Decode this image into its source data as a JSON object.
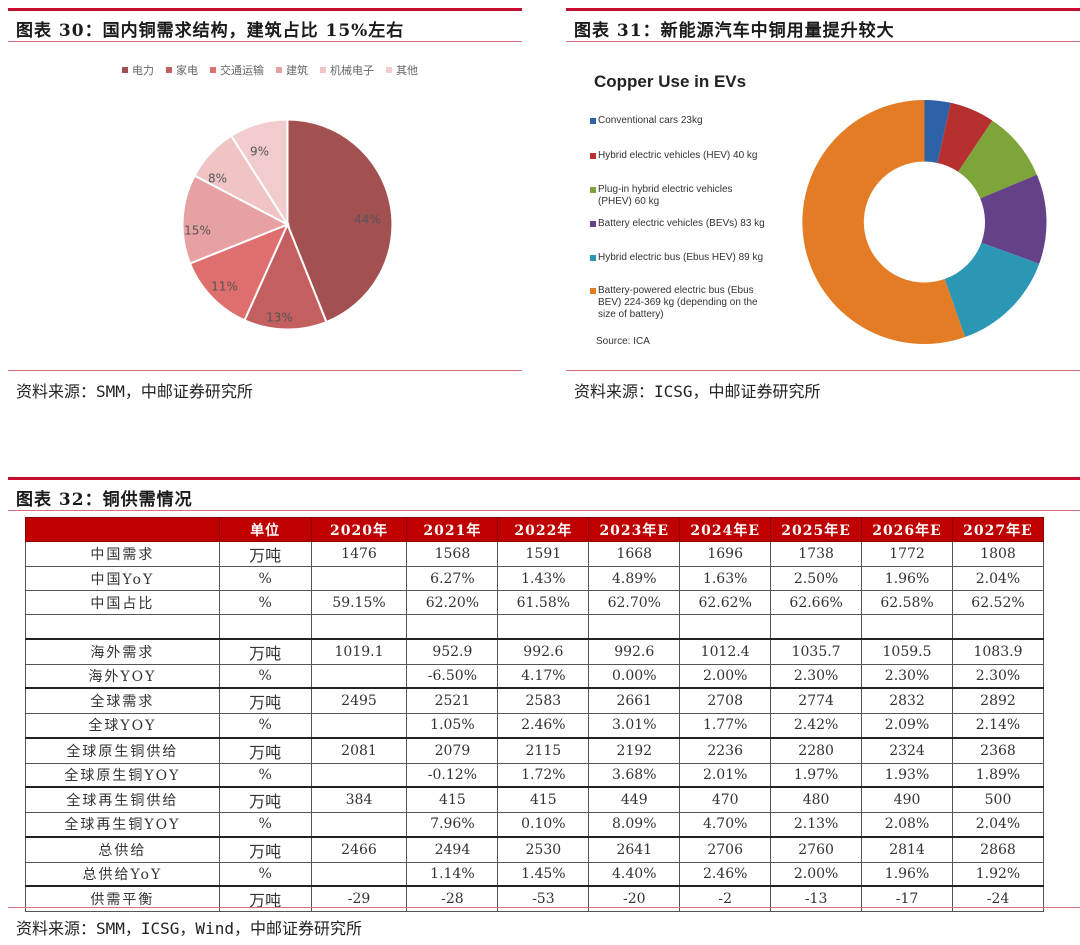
{
  "fig30": {
    "title": "图表 30：国内铜需求结构，建筑占比 15%左右",
    "source": "资料来源：SMM，中邮证券研究所"
  },
  "fig31": {
    "title": "图表 31：新能源汽车中铜用量提升较大",
    "chart_title": "Copper Use in EVs",
    "source": "资料来源：ICSG，中邮证券研究所",
    "source_note": "Source: ICA"
  },
  "fig32": {
    "title": "图表 32：铜供需情况",
    "source": "资料来源：SMM，ICSG，Wind，中邮证券研究所"
  },
  "chart_data": [
    {
      "type": "pie",
      "title": "国内铜需求结构",
      "categories": [
        "电力",
        "家电",
        "交通运输",
        "建筑",
        "机械电子",
        "其他"
      ],
      "values": [
        44,
        13,
        11,
        15,
        8,
        9
      ],
      "labels": [
        "44%",
        "13%",
        "11%",
        "15%",
        "8%",
        "9%"
      ],
      "colors": [
        "#a35050",
        "#c45f60",
        "#df6e6e",
        "#e8a1a2",
        "#f0c4c4",
        "#f2cccc"
      ],
      "legend_position": "top"
    },
    {
      "type": "pie",
      "subtype": "donut",
      "title": "Copper Use in EVs",
      "categories": [
        "Conventional cars 23kg",
        "Hybrid electric vehicles (HEV) 40 kg",
        "Plug-in hybrid electric vehicles (PHEV) 60 kg",
        "Battery electric vehicles (BEVs) 83 kg",
        "Hybrid electric bus (Ebus HEV) 89 kg",
        "Battery-powered electric bus (Ebus BEV) 224-369 kg (depending on the size of battery)"
      ],
      "values": [
        23,
        40,
        60,
        83,
        89,
        369
      ],
      "colors": [
        "#2e62a8",
        "#b5302e",
        "#7ea53a",
        "#654287",
        "#2b97b5",
        "#e37c25"
      ],
      "legend_position": "left"
    },
    {
      "type": "table",
      "title": "铜供需情况",
      "columns": [
        "",
        "单位",
        "2020年",
        "2021年",
        "2022年",
        "2023年E",
        "2024年E",
        "2025年E",
        "2026年E",
        "2027年E"
      ],
      "rows": [
        [
          "中国需求",
          "万吨",
          "1476",
          "1568",
          "1591",
          "1668",
          "1696",
          "1738",
          "1772",
          "1808"
        ],
        [
          "中国YoY",
          "%",
          "",
          "6.27%",
          "1.43%",
          "4.89%",
          "1.63%",
          "2.50%",
          "1.96%",
          "2.04%"
        ],
        [
          "中国占比",
          "%",
          "59.15%",
          "62.20%",
          "61.58%",
          "62.70%",
          "62.62%",
          "62.66%",
          "62.58%",
          "62.52%"
        ],
        [
          "",
          "",
          "",
          "",
          "",
          "",
          "",
          "",
          "",
          ""
        ],
        [
          "海外需求",
          "万吨",
          "1019.1",
          "952.9",
          "992.6",
          "992.6",
          "1012.4",
          "1035.7",
          "1059.5",
          "1083.9"
        ],
        [
          "海外YOY",
          "%",
          "",
          "-6.50%",
          "4.17%",
          "0.00%",
          "2.00%",
          "2.30%",
          "2.30%",
          "2.30%"
        ],
        [
          "全球需求",
          "万吨",
          "2495",
          "2521",
          "2583",
          "2661",
          "2708",
          "2774",
          "2832",
          "2892"
        ],
        [
          "全球YOY",
          "%",
          "",
          "1.05%",
          "2.46%",
          "3.01%",
          "1.77%",
          "2.42%",
          "2.09%",
          "2.14%"
        ],
        [
          "全球原生铜供给",
          "万吨",
          "2081",
          "2079",
          "2115",
          "2192",
          "2236",
          "2280",
          "2324",
          "2368"
        ],
        [
          "全球原生铜YOY",
          "%",
          "",
          "-0.12%",
          "1.72%",
          "3.68%",
          "2.01%",
          "1.97%",
          "1.93%",
          "1.89%"
        ],
        [
          "全球再生铜供给",
          "万吨",
          "384",
          "415",
          "415",
          "449",
          "470",
          "480",
          "490",
          "500"
        ],
        [
          "全球再生铜YOY",
          "%",
          "",
          "7.96%",
          "0.10%",
          "8.09%",
          "4.70%",
          "2.13%",
          "2.08%",
          "2.04%"
        ],
        [
          "总供给",
          "万吨",
          "2466",
          "2494",
          "2530",
          "2641",
          "2706",
          "2760",
          "2814",
          "2868"
        ],
        [
          "总供给YoY",
          "%",
          "",
          "1.14%",
          "1.45%",
          "4.40%",
          "2.46%",
          "2.00%",
          "1.96%",
          "1.92%"
        ],
        [
          "供需平衡",
          "万吨",
          "-29",
          "-28",
          "-53",
          "-20",
          "-2",
          "-13",
          "-17",
          "-24"
        ]
      ]
    }
  ]
}
